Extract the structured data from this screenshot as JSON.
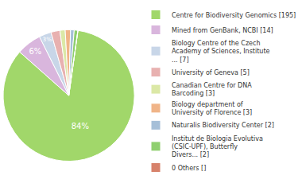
{
  "chart_data": {
    "type": "pie",
    "categories": [
      "Centre for Biodiversity Genomics [195]",
      "Mined from GenBank, NCBI [14]",
      "Biology Centre of the Czech\nAcademy of Sciences, Institute\n... [7]",
      "University of Geneva [5]",
      "Canadian Centre for DNA\nBarcoding [3]",
      "Biology department of\nUniversity of Florence [3]",
      "Naturalis Biodiversity Center [2]",
      "Institut de Biologia Evolutiva\n(CSIC-UPF), Butterfly\nDivers... [2]",
      "0 Others []"
    ],
    "values": [
      84.4,
      6.1,
      3.0,
      2.2,
      1.3,
      1.3,
      0.9,
      0.9,
      0
    ],
    "value_labels": [
      "84%",
      "6%",
      "3%",
      null,
      null,
      null,
      null,
      null,
      null
    ],
    "colors": [
      "#a1d76a",
      "#d9b6dd",
      "#c8d6e8",
      "#e8b1b0",
      "#dbe8a6",
      "#f0b488",
      "#a6bfd8",
      "#8fcf6f",
      "#d7826b"
    ],
    "data_labels": true,
    "legend": "right"
  }
}
